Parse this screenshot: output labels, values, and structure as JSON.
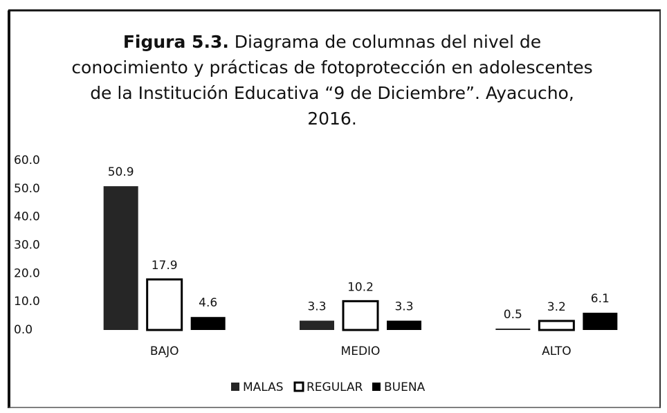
{
  "chart_data": {
    "type": "bar",
    "title_label": "Figura 5.3.",
    "title": "Diagrama de columnas del nivel de conocimiento y prácticas de fotoprotección en adolescentes de la Institución Educativa “9 de Diciembre”. Ayacucho, 2016.",
    "categories": [
      "BAJO",
      "MEDIO",
      "ALTO"
    ],
    "series": [
      {
        "name": "MALAS",
        "color": "#262626",
        "values": [
          50.9,
          3.3,
          0.5
        ]
      },
      {
        "name": "REGULAR",
        "color": "#ffffff",
        "values": [
          17.9,
          10.2,
          3.2
        ]
      },
      {
        "name": "BUENA",
        "color": "#000000",
        "values": [
          4.6,
          3.3,
          6.1
        ]
      }
    ],
    "ylim": [
      0,
      60
    ],
    "yticks": [
      {
        "value": 0,
        "label": "0.0"
      },
      {
        "value": 10,
        "label": "10.0"
      },
      {
        "value": 20,
        "label": "20.0"
      },
      {
        "value": 30,
        "label": "30.0"
      },
      {
        "value": 40,
        "label": "40.0"
      },
      {
        "value": 50,
        "label": "50.0"
      },
      {
        "value": 60,
        "label": "60.0"
      }
    ],
    "legend": "bottom"
  }
}
